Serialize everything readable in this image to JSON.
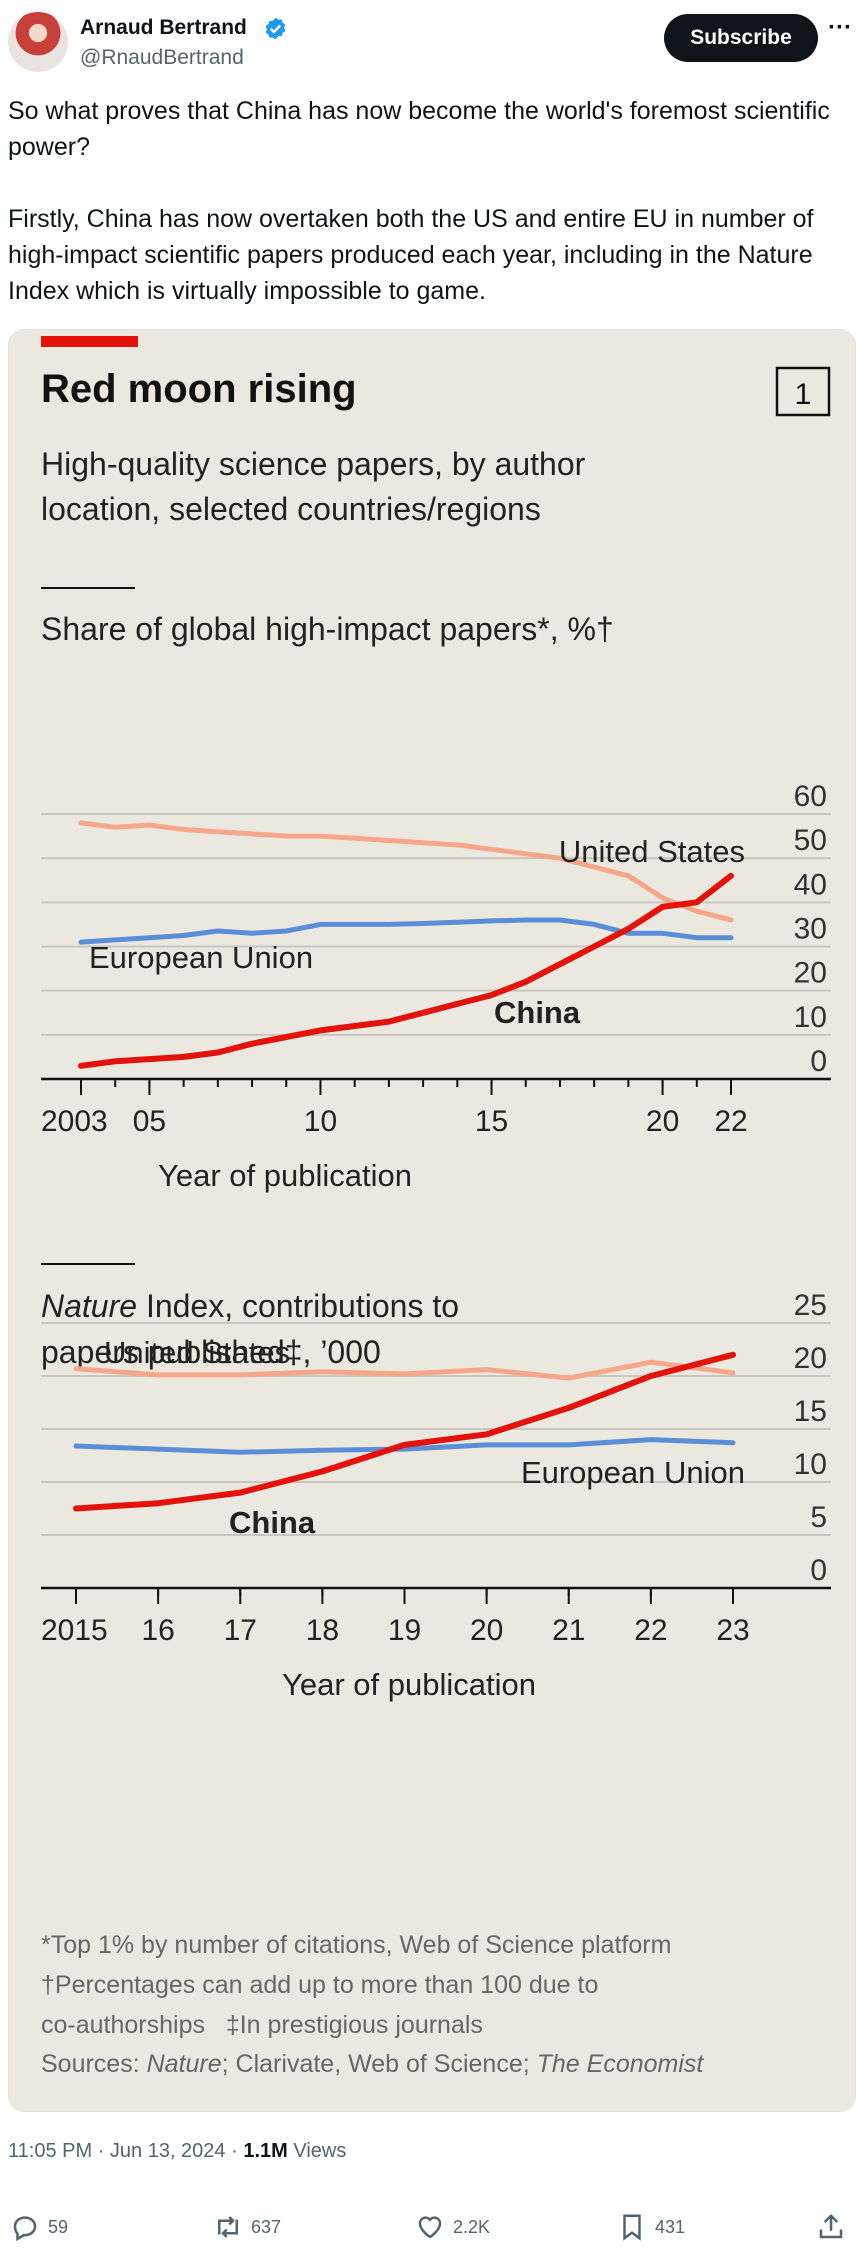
{
  "author": {
    "name": "Arnaud Bertrand",
    "handle": "@RnaudBertrand",
    "subscribe_label": "Subscribe",
    "more_label": "···"
  },
  "tweet": {
    "paragraphs": [
      "So what proves that China has now become the world's foremost scientific power?",
      "Firstly, China has now overtaken both the US and entire EU in number of high-impact scientific papers produced each year, including in the Nature Index which is virtually impossible to game."
    ],
    "timestamp": "11:05 PM · Jun 13, 2024 · ",
    "views_count": "1.1M",
    "views_label": " Views"
  },
  "actions": {
    "replies": "59",
    "reposts": "637",
    "likes": "2.2K",
    "bookmarks": "431"
  },
  "colors": {
    "chart_bg": "#ebe9df",
    "china": "#e3120b",
    "united_states": "#f6a68b",
    "european_union": "#5b8ed8",
    "verified": "#1d9bf0"
  },
  "infographic": {
    "title": "Red moon rising",
    "number": "1",
    "subtitle_lines": [
      "High-quality science papers, by author",
      "location, selected countries/regions"
    ],
    "notes": [
      "*Top 1% by number of citations, Web of Science platform",
      "†Percentages can add up to more than 100 due to",
      "co-authorships   ‡In prestigious journals"
    ],
    "sources": {
      "prefix": "Sources: ",
      "nature": "Nature",
      "middle": "; Clarivate, Web of Science; ",
      "economist": "The Economist"
    }
  },
  "chart_data": [
    {
      "type": "line",
      "title": "Share of global high-impact papers*, %†",
      "xlabel": "Year of publication",
      "ylabel": "",
      "ylim": [
        0,
        60
      ],
      "y_ticks": [
        0,
        10,
        20,
        30,
        40,
        50,
        60
      ],
      "x_range": [
        2003,
        2022
      ],
      "x_ticks": [
        {
          "x": 2003,
          "label": "2003"
        },
        {
          "x": 2005,
          "label": "05"
        },
        {
          "x": 2010,
          "label": "10"
        },
        {
          "x": 2015,
          "label": "15"
        },
        {
          "x": 2020,
          "label": "20"
        },
        {
          "x": 2022,
          "label": "22"
        }
      ],
      "grid": true,
      "x": [
        2003,
        2004,
        2005,
        2006,
        2007,
        2008,
        2009,
        2010,
        2011,
        2012,
        2013,
        2014,
        2015,
        2016,
        2017,
        2018,
        2019,
        2020,
        2021,
        2022
      ],
      "series": [
        {
          "name": "United States",
          "color_key": "united_states",
          "values": [
            58,
            57,
            57.5,
            56.5,
            56,
            55.5,
            55,
            55,
            54.5,
            54,
            53.5,
            53,
            52,
            51,
            50,
            48,
            46,
            41,
            38,
            36
          ]
        },
        {
          "name": "European Union",
          "color_key": "european_union",
          "values": [
            31,
            31.5,
            32,
            32.5,
            33.5,
            33,
            33.5,
            35,
            35,
            35,
            35.2,
            35.5,
            35.8,
            36,
            36,
            35,
            33,
            33,
            32,
            32
          ]
        },
        {
          "name": "China",
          "color_key": "china",
          "values": [
            3,
            4,
            4.5,
            5,
            6,
            8,
            9.5,
            11,
            12,
            13,
            15,
            17,
            19,
            22,
            26,
            30,
            34,
            39,
            40,
            46
          ]
        }
      ]
    },
    {
      "type": "line",
      "title": "Nature Index, contributions to papers published‡, ’000",
      "title_italic": "Nature",
      "title_rest_line1": " Index, contributions to",
      "title_line2": "papers published‡, ’000",
      "xlabel": "Year of publication",
      "ylabel": "",
      "ylim": [
        0,
        25
      ],
      "y_ticks": [
        0,
        5,
        10,
        15,
        20,
        25
      ],
      "x_range": [
        2015,
        2023
      ],
      "x_ticks": [
        {
          "x": 2015,
          "label": "2015"
        },
        {
          "x": 2016,
          "label": "16"
        },
        {
          "x": 2017,
          "label": "17"
        },
        {
          "x": 2018,
          "label": "18"
        },
        {
          "x": 2019,
          "label": "19"
        },
        {
          "x": 2020,
          "label": "20"
        },
        {
          "x": 2021,
          "label": "21"
        },
        {
          "x": 2022,
          "label": "22"
        },
        {
          "x": 2023,
          "label": "23"
        }
      ],
      "grid": true,
      "x": [
        2015,
        2016,
        2017,
        2018,
        2019,
        2020,
        2021,
        2022,
        2023
      ],
      "series": [
        {
          "name": "United States",
          "color_key": "united_states",
          "values": [
            20.7,
            20.1,
            20.1,
            20.4,
            20.2,
            20.6,
            19.8,
            21.3,
            20.3
          ]
        },
        {
          "name": "European Union",
          "color_key": "european_union",
          "values": [
            13.4,
            13.1,
            12.8,
            13.0,
            13.1,
            13.5,
            13.5,
            14.0,
            13.7
          ]
        },
        {
          "name": "China",
          "color_key": "china",
          "values": [
            7.5,
            8.0,
            9.0,
            11.0,
            13.5,
            14.5,
            17.0,
            20.0,
            22.0
          ]
        }
      ]
    }
  ]
}
